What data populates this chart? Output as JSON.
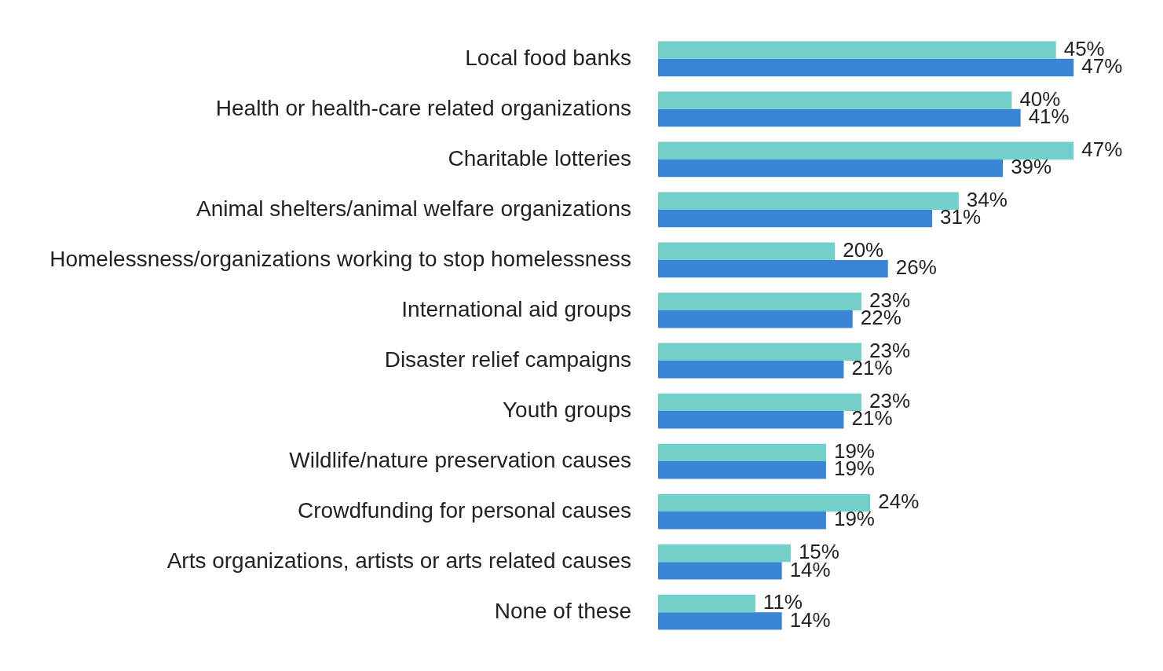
{
  "chart_data": {
    "type": "bar",
    "orientation": "horizontal",
    "categories": [
      "Local food banks",
      "Health or health-care related organizations",
      "Charitable lotteries",
      "Animal shelters/animal welfare organizations",
      "Homelessness/organizations working to stop homelessness",
      "International aid groups",
      "Disaster relief campaigns",
      "Youth groups",
      "Wildlife/nature preservation causes",
      "Crowdfunding for personal causes",
      "Arts organizations, artists or arts related causes",
      "None of these"
    ],
    "series": [
      {
        "color": "#72cfc9",
        "values": [
          45,
          40,
          47,
          34,
          20,
          23,
          23,
          23,
          19,
          24,
          15,
          11
        ],
        "value_labels": [
          "45%",
          "40%",
          "47%",
          "34%",
          "20%",
          "23%",
          "23%",
          "23%",
          "19%",
          "24%",
          "15%",
          "11%"
        ]
      },
      {
        "color": "#3a84d4",
        "values": [
          47,
          41,
          39,
          31,
          26,
          22,
          21,
          21,
          19,
          19,
          14,
          14
        ],
        "value_labels": [
          "47%",
          "41%",
          "39%",
          "31%",
          "26%",
          "22%",
          "21%",
          "21%",
          "19%",
          "19%",
          "14%",
          "14%"
        ]
      }
    ],
    "legend": false
  }
}
